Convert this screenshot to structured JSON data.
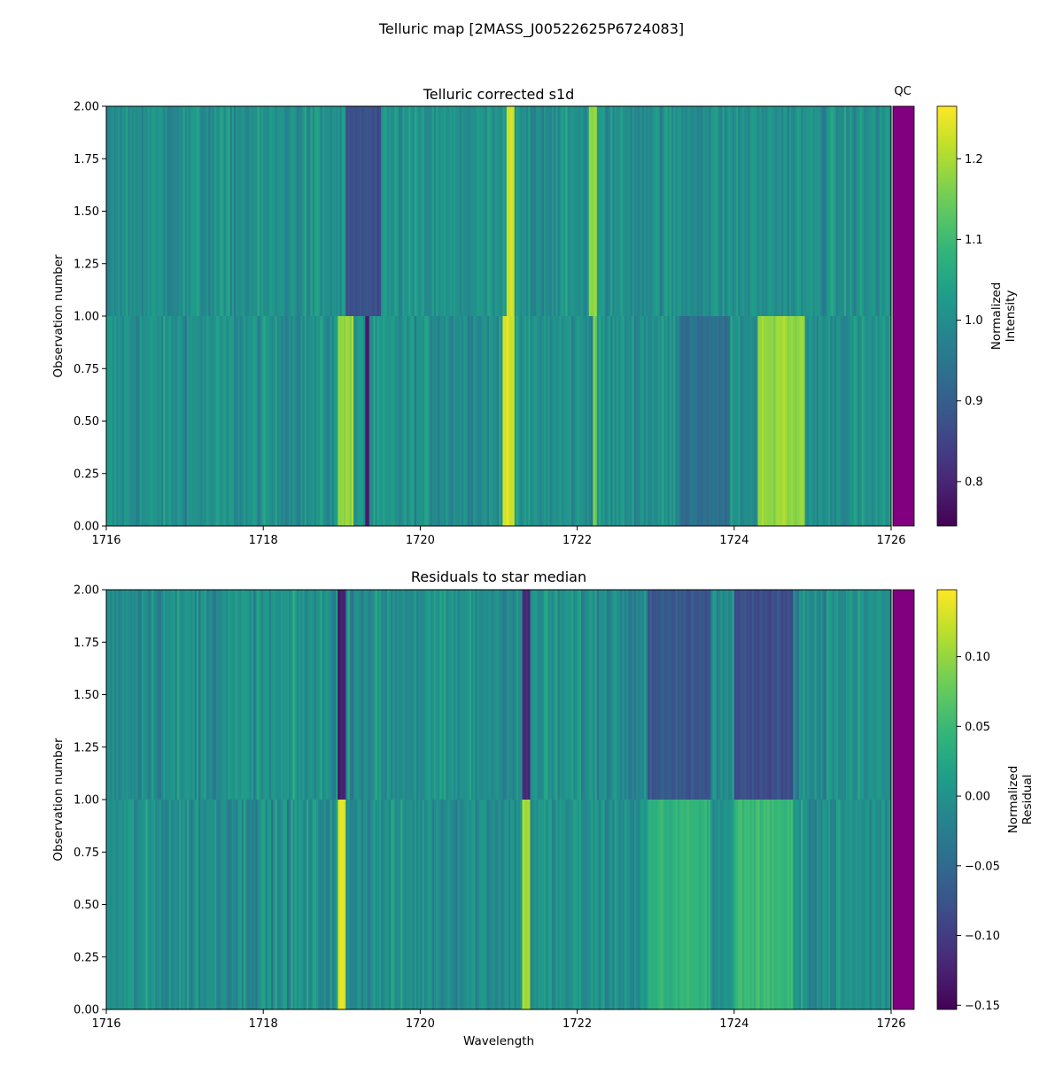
{
  "figure": {
    "title": "Telluric map [2MASS_J00522625P6724083]",
    "background": "#ffffff"
  },
  "qc": {
    "label": "QC",
    "color": "#800080"
  },
  "chart_data": [
    {
      "type": "heatmap",
      "title": "Telluric corrected s1d",
      "xlabel": "",
      "ylabel": "Observation number",
      "xlim": [
        1716,
        1726
      ],
      "ylim": [
        0,
        2
      ],
      "x_ticks": [
        "1716",
        "1718",
        "1720",
        "1722",
        "1724",
        "1726"
      ],
      "y_ticks": [
        "0.00",
        "0.25",
        "0.50",
        "0.75",
        "1.00",
        "1.25",
        "1.50",
        "1.75",
        "2.00"
      ],
      "rows": [
        {
          "observation": 0,
          "y_range": [
            0,
            1
          ]
        },
        {
          "observation": 1,
          "y_range": [
            1,
            2
          ]
        }
      ],
      "colormap": "viridis",
      "colorbar": {
        "label_line1": "Normalized",
        "label_line2": "Intensity",
        "vmin": 0.745,
        "vmax": 1.265,
        "ticks": [
          "0.8",
          "0.9",
          "1.0",
          "1.1",
          "1.2"
        ]
      },
      "features": [
        {
          "x_range": [
            1719.05,
            1719.5
          ],
          "row": 1,
          "value": 0.87
        },
        {
          "x_range": [
            1719.3,
            1719.35
          ],
          "row": 0,
          "value": 0.78
        },
        {
          "x_range": [
            1718.95,
            1719.15
          ],
          "row": 0,
          "value": 1.18
        },
        {
          "x_range": [
            1721.05,
            1721.2
          ],
          "row": 0,
          "value": 1.24
        },
        {
          "x_range": [
            1721.1,
            1721.2
          ],
          "row": 1,
          "value": 1.22
        },
        {
          "x_range": [
            1722.15,
            1722.25
          ],
          "row": 1,
          "value": 1.18
        },
        {
          "x_range": [
            1722.2,
            1722.25
          ],
          "row": 0,
          "value": 1.16
        },
        {
          "x_range": [
            1723.3,
            1723.95
          ],
          "row": 0,
          "value": 0.93
        },
        {
          "x_range": [
            1724.3,
            1724.9
          ],
          "row": 0,
          "value": 1.18
        }
      ]
    },
    {
      "type": "heatmap",
      "title": "Residuals to star median",
      "xlabel": "Wavelength",
      "ylabel": "Observation number",
      "xlim": [
        1716,
        1726
      ],
      "ylim": [
        0,
        2
      ],
      "x_ticks": [
        "1716",
        "1718",
        "1720",
        "1722",
        "1724",
        "1726"
      ],
      "y_ticks": [
        "0.00",
        "0.25",
        "0.50",
        "0.75",
        "1.00",
        "1.25",
        "1.50",
        "1.75",
        "2.00"
      ],
      "rows": [
        {
          "observation": 0,
          "y_range": [
            0,
            1
          ]
        },
        {
          "observation": 1,
          "y_range": [
            1,
            2
          ]
        }
      ],
      "colormap": "viridis",
      "colorbar": {
        "label_line1": "Normalized",
        "label_line2": "Residual",
        "vmin": -0.153,
        "vmax": 0.148,
        "ticks": [
          "0.10",
          "0.05",
          "0.00",
          "−0.05",
          "−0.10",
          "−0.15"
        ]
      },
      "features": [
        {
          "x_range": [
            1718.95,
            1719.05
          ],
          "row": 1,
          "value": -0.13
        },
        {
          "x_range": [
            1718.95,
            1719.05
          ],
          "row": 0,
          "value": 0.13
        },
        {
          "x_range": [
            1721.3,
            1721.4
          ],
          "row": 1,
          "value": -0.12
        },
        {
          "x_range": [
            1721.3,
            1721.4
          ],
          "row": 0,
          "value": 0.11
        },
        {
          "x_range": [
            1722.9,
            1723.7
          ],
          "row": 1,
          "value": -0.07
        },
        {
          "x_range": [
            1724.0,
            1724.75
          ],
          "row": 1,
          "value": -0.08
        },
        {
          "x_range": [
            1722.9,
            1723.7
          ],
          "row": 0,
          "value": 0.04
        },
        {
          "x_range": [
            1724.0,
            1724.75
          ],
          "row": 0,
          "value": 0.05
        }
      ]
    }
  ]
}
